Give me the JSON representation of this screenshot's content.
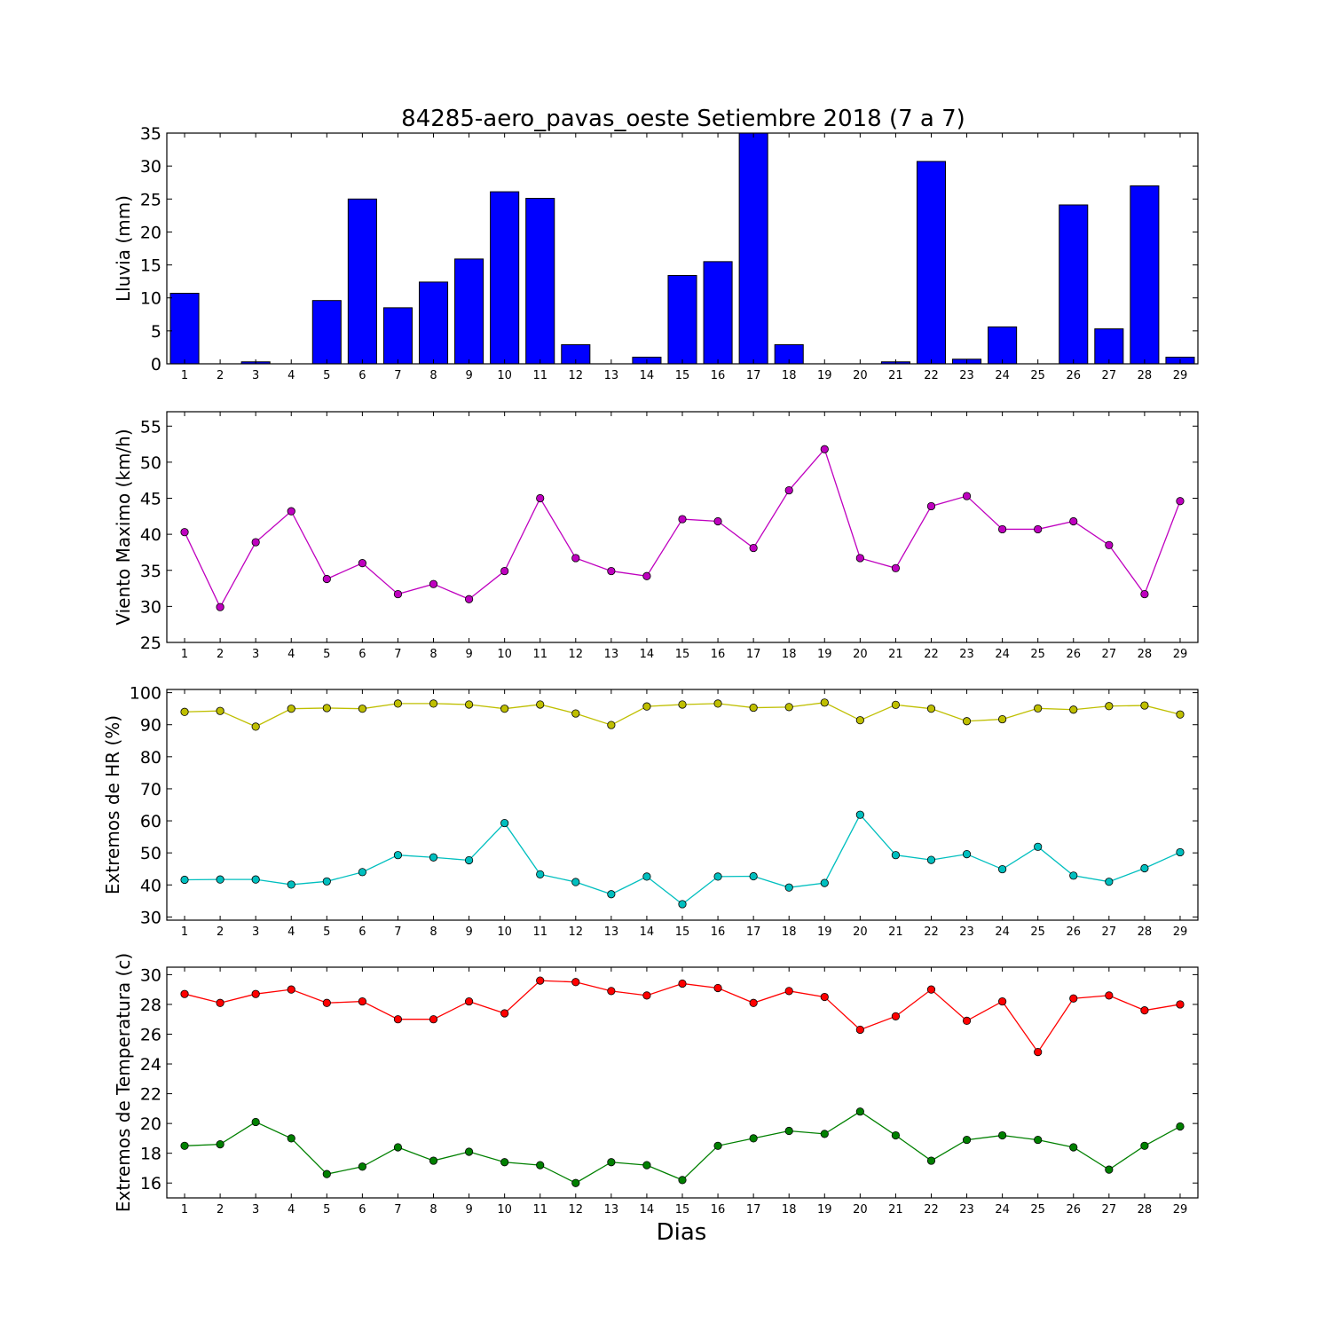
{
  "figure": {
    "title": "84285-aero_pavas_oeste Setiembre 2018  (7 a 7)",
    "xlabel": "Dias"
  },
  "chart_data": [
    {
      "type": "bar",
      "ylabel": "Lluvia (mm)",
      "ylim": [
        0,
        35
      ],
      "yticks": [
        0,
        5,
        10,
        15,
        20,
        25,
        30,
        35
      ],
      "categories": [
        "1",
        "2",
        "3",
        "4",
        "5",
        "6",
        "7",
        "8",
        "9",
        "10",
        "11",
        "12",
        "13",
        "14",
        "15",
        "16",
        "17",
        "18",
        "19",
        "20",
        "21",
        "22",
        "23",
        "24",
        "25",
        "26",
        "27",
        "28",
        "29"
      ],
      "grid": false,
      "series": [
        {
          "color": "#0000ff",
          "values": [
            10.7,
            0,
            0.3,
            0,
            9.6,
            25.0,
            8.5,
            12.4,
            15.9,
            26.1,
            25.1,
            2.9,
            0,
            1.0,
            13.4,
            15.5,
            35.0,
            2.9,
            0,
            0,
            0.3,
            30.7,
            0.7,
            5.6,
            0,
            24.1,
            5.3,
            27.0,
            1.0
          ]
        }
      ]
    },
    {
      "type": "line",
      "ylabel": "Viento Maximo (km/h)",
      "ylim": [
        25,
        57
      ],
      "yticks": [
        25,
        30,
        35,
        40,
        45,
        50,
        55
      ],
      "categories": [
        "1",
        "2",
        "3",
        "4",
        "5",
        "6",
        "7",
        "8",
        "9",
        "10",
        "11",
        "12",
        "13",
        "14",
        "15",
        "16",
        "17",
        "18",
        "19",
        "20",
        "21",
        "22",
        "23",
        "24",
        "25",
        "26",
        "27",
        "28",
        "29"
      ],
      "grid": false,
      "series": [
        {
          "color": "#bf00bf",
          "values": [
            40.3,
            29.9,
            38.9,
            43.2,
            33.8,
            36.0,
            31.7,
            33.1,
            31.0,
            34.9,
            45.0,
            36.7,
            34.9,
            34.2,
            42.1,
            41.8,
            38.1,
            46.1,
            51.8,
            36.7,
            35.3,
            43.9,
            45.3,
            40.7,
            40.7,
            41.8,
            38.5,
            31.7,
            44.6
          ]
        }
      ]
    },
    {
      "type": "line",
      "ylabel": "Extremos de HR (%)",
      "ylim": [
        29,
        101
      ],
      "yticks": [
        30,
        40,
        50,
        60,
        70,
        80,
        90,
        100
      ],
      "categories": [
        "1",
        "2",
        "3",
        "4",
        "5",
        "6",
        "7",
        "8",
        "9",
        "10",
        "11",
        "12",
        "13",
        "14",
        "15",
        "16",
        "17",
        "18",
        "19",
        "20",
        "21",
        "22",
        "23",
        "24",
        "25",
        "26",
        "27",
        "28",
        "29"
      ],
      "grid": false,
      "series": [
        {
          "color": "#bfbf00",
          "values": [
            94.0,
            94.3,
            89.4,
            95.0,
            95.2,
            95.0,
            96.6,
            96.6,
            96.3,
            95.0,
            96.3,
            93.5,
            89.9,
            95.7,
            96.3,
            96.6,
            95.3,
            95.5,
            96.9,
            91.4,
            96.2,
            95.0,
            91.1,
            91.7,
            95.1,
            94.7,
            95.8,
            96.0,
            93.2
          ]
        },
        {
          "color": "#00bfbf",
          "values": [
            41.6,
            41.7,
            41.7,
            40.1,
            41.1,
            44.0,
            49.3,
            48.6,
            47.7,
            59.3,
            43.3,
            40.9,
            37.1,
            42.6,
            34.0,
            42.6,
            42.7,
            39.2,
            40.6,
            61.9,
            49.3,
            47.8,
            49.6,
            44.9,
            51.9,
            42.9,
            41.0,
            45.2,
            50.2
          ]
        }
      ]
    },
    {
      "type": "line",
      "ylabel": "Extremos de Temperatura (c)",
      "ylim": [
        15,
        30.5
      ],
      "yticks": [
        16,
        18,
        20,
        22,
        24,
        26,
        28,
        30
      ],
      "categories": [
        "1",
        "2",
        "3",
        "4",
        "5",
        "6",
        "7",
        "8",
        "9",
        "10",
        "11",
        "12",
        "13",
        "14",
        "15",
        "16",
        "17",
        "18",
        "19",
        "20",
        "21",
        "22",
        "23",
        "24",
        "25",
        "26",
        "27",
        "28",
        "29"
      ],
      "grid": false,
      "series": [
        {
          "color": "#ff0000",
          "values": [
            28.7,
            28.1,
            28.7,
            29.0,
            28.1,
            28.2,
            27.0,
            27.0,
            28.2,
            27.4,
            29.6,
            29.5,
            28.9,
            28.6,
            29.4,
            29.1,
            28.1,
            28.9,
            28.5,
            26.3,
            27.2,
            29.0,
            26.9,
            28.2,
            24.8,
            28.4,
            28.6,
            27.6,
            28.0
          ]
        },
        {
          "color": "#008000",
          "values": [
            18.5,
            18.6,
            20.1,
            19.0,
            16.6,
            17.1,
            18.4,
            17.5,
            18.1,
            17.4,
            17.2,
            16.0,
            17.4,
            17.2,
            16.2,
            18.5,
            19.0,
            19.5,
            19.3,
            20.8,
            19.2,
            17.5,
            18.9,
            19.2,
            18.9,
            18.4,
            16.9,
            18.5,
            19.8
          ]
        }
      ]
    }
  ]
}
